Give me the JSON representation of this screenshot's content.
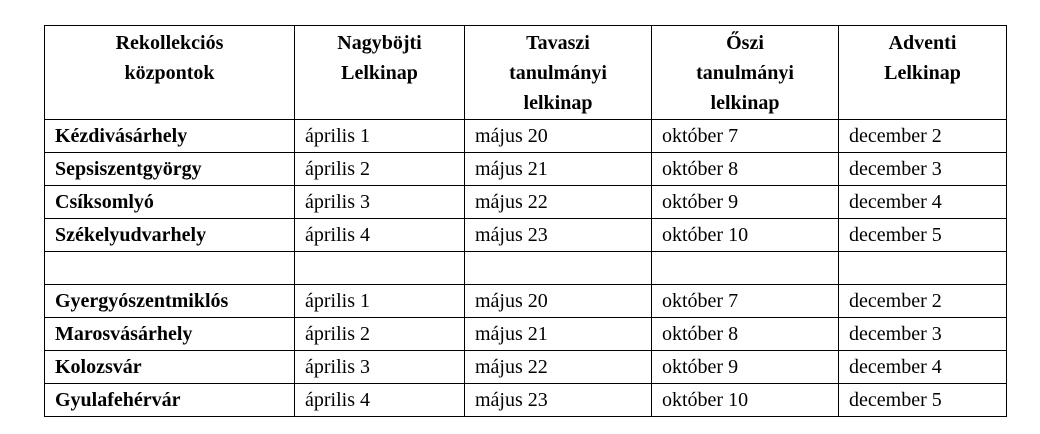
{
  "table": {
    "header": [
      [
        "Rekollekciós",
        "központok"
      ],
      [
        "Nagyböjti",
        "Lelkinap"
      ],
      [
        "Tavaszi",
        "tanulmányi",
        "lelkinap"
      ],
      [
        "Őszi",
        "tanulmányi",
        "lelkinap"
      ],
      [
        "Adventi",
        "Lelkinap"
      ]
    ],
    "groups": [
      [
        [
          "Kézdivásárhely",
          "április 1",
          "május 20",
          "október 7",
          "december 2"
        ],
        [
          "Sepsiszentgyörgy",
          "április 2",
          "május 21",
          "október 8",
          "december 3"
        ],
        [
          "Csíksomlyó",
          "április 3",
          "május 22",
          "október 9",
          "december 4"
        ],
        [
          "Székelyudvarhely",
          "április 4",
          "május 23",
          "október 10",
          "december 5"
        ]
      ],
      [
        [
          "Gyergyószentmiklós",
          "április 1",
          "május 20",
          "október 7",
          "december 2"
        ],
        [
          "Marosvásárhely",
          "április 2",
          "május 21",
          "október 8",
          "december 3"
        ],
        [
          "Kolozsvár",
          "április 3",
          "május 22",
          "október 9",
          "december 4"
        ],
        [
          "Gyulafehérvár",
          "április 4",
          "május 23",
          "október 10",
          "december 5"
        ]
      ]
    ]
  }
}
